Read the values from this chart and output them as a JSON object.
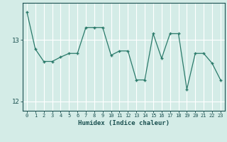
{
  "xlabel": "Humidex (Indice chaleur)",
  "ylabel": "",
  "background_color": "#d4ece7",
  "line_color": "#2a7a6a",
  "marker_color": "#2a7a6a",
  "grid_color": "#ffffff",
  "text_color": "#1a5050",
  "x_values": [
    0,
    1,
    2,
    3,
    4,
    5,
    6,
    7,
    8,
    9,
    10,
    11,
    12,
    13,
    14,
    15,
    16,
    17,
    18,
    19,
    20,
    21,
    22,
    23
  ],
  "y_values": [
    13.45,
    12.85,
    12.65,
    12.65,
    12.72,
    12.78,
    12.78,
    13.2,
    13.2,
    13.2,
    12.75,
    12.82,
    12.82,
    12.35,
    12.35,
    13.1,
    12.7,
    13.1,
    13.1,
    12.2,
    12.78,
    12.78,
    12.62,
    12.35
  ],
  "ylim": [
    11.85,
    13.6
  ],
  "yticks": [
    12,
    13
  ],
  "xlim": [
    -0.5,
    23.5
  ]
}
